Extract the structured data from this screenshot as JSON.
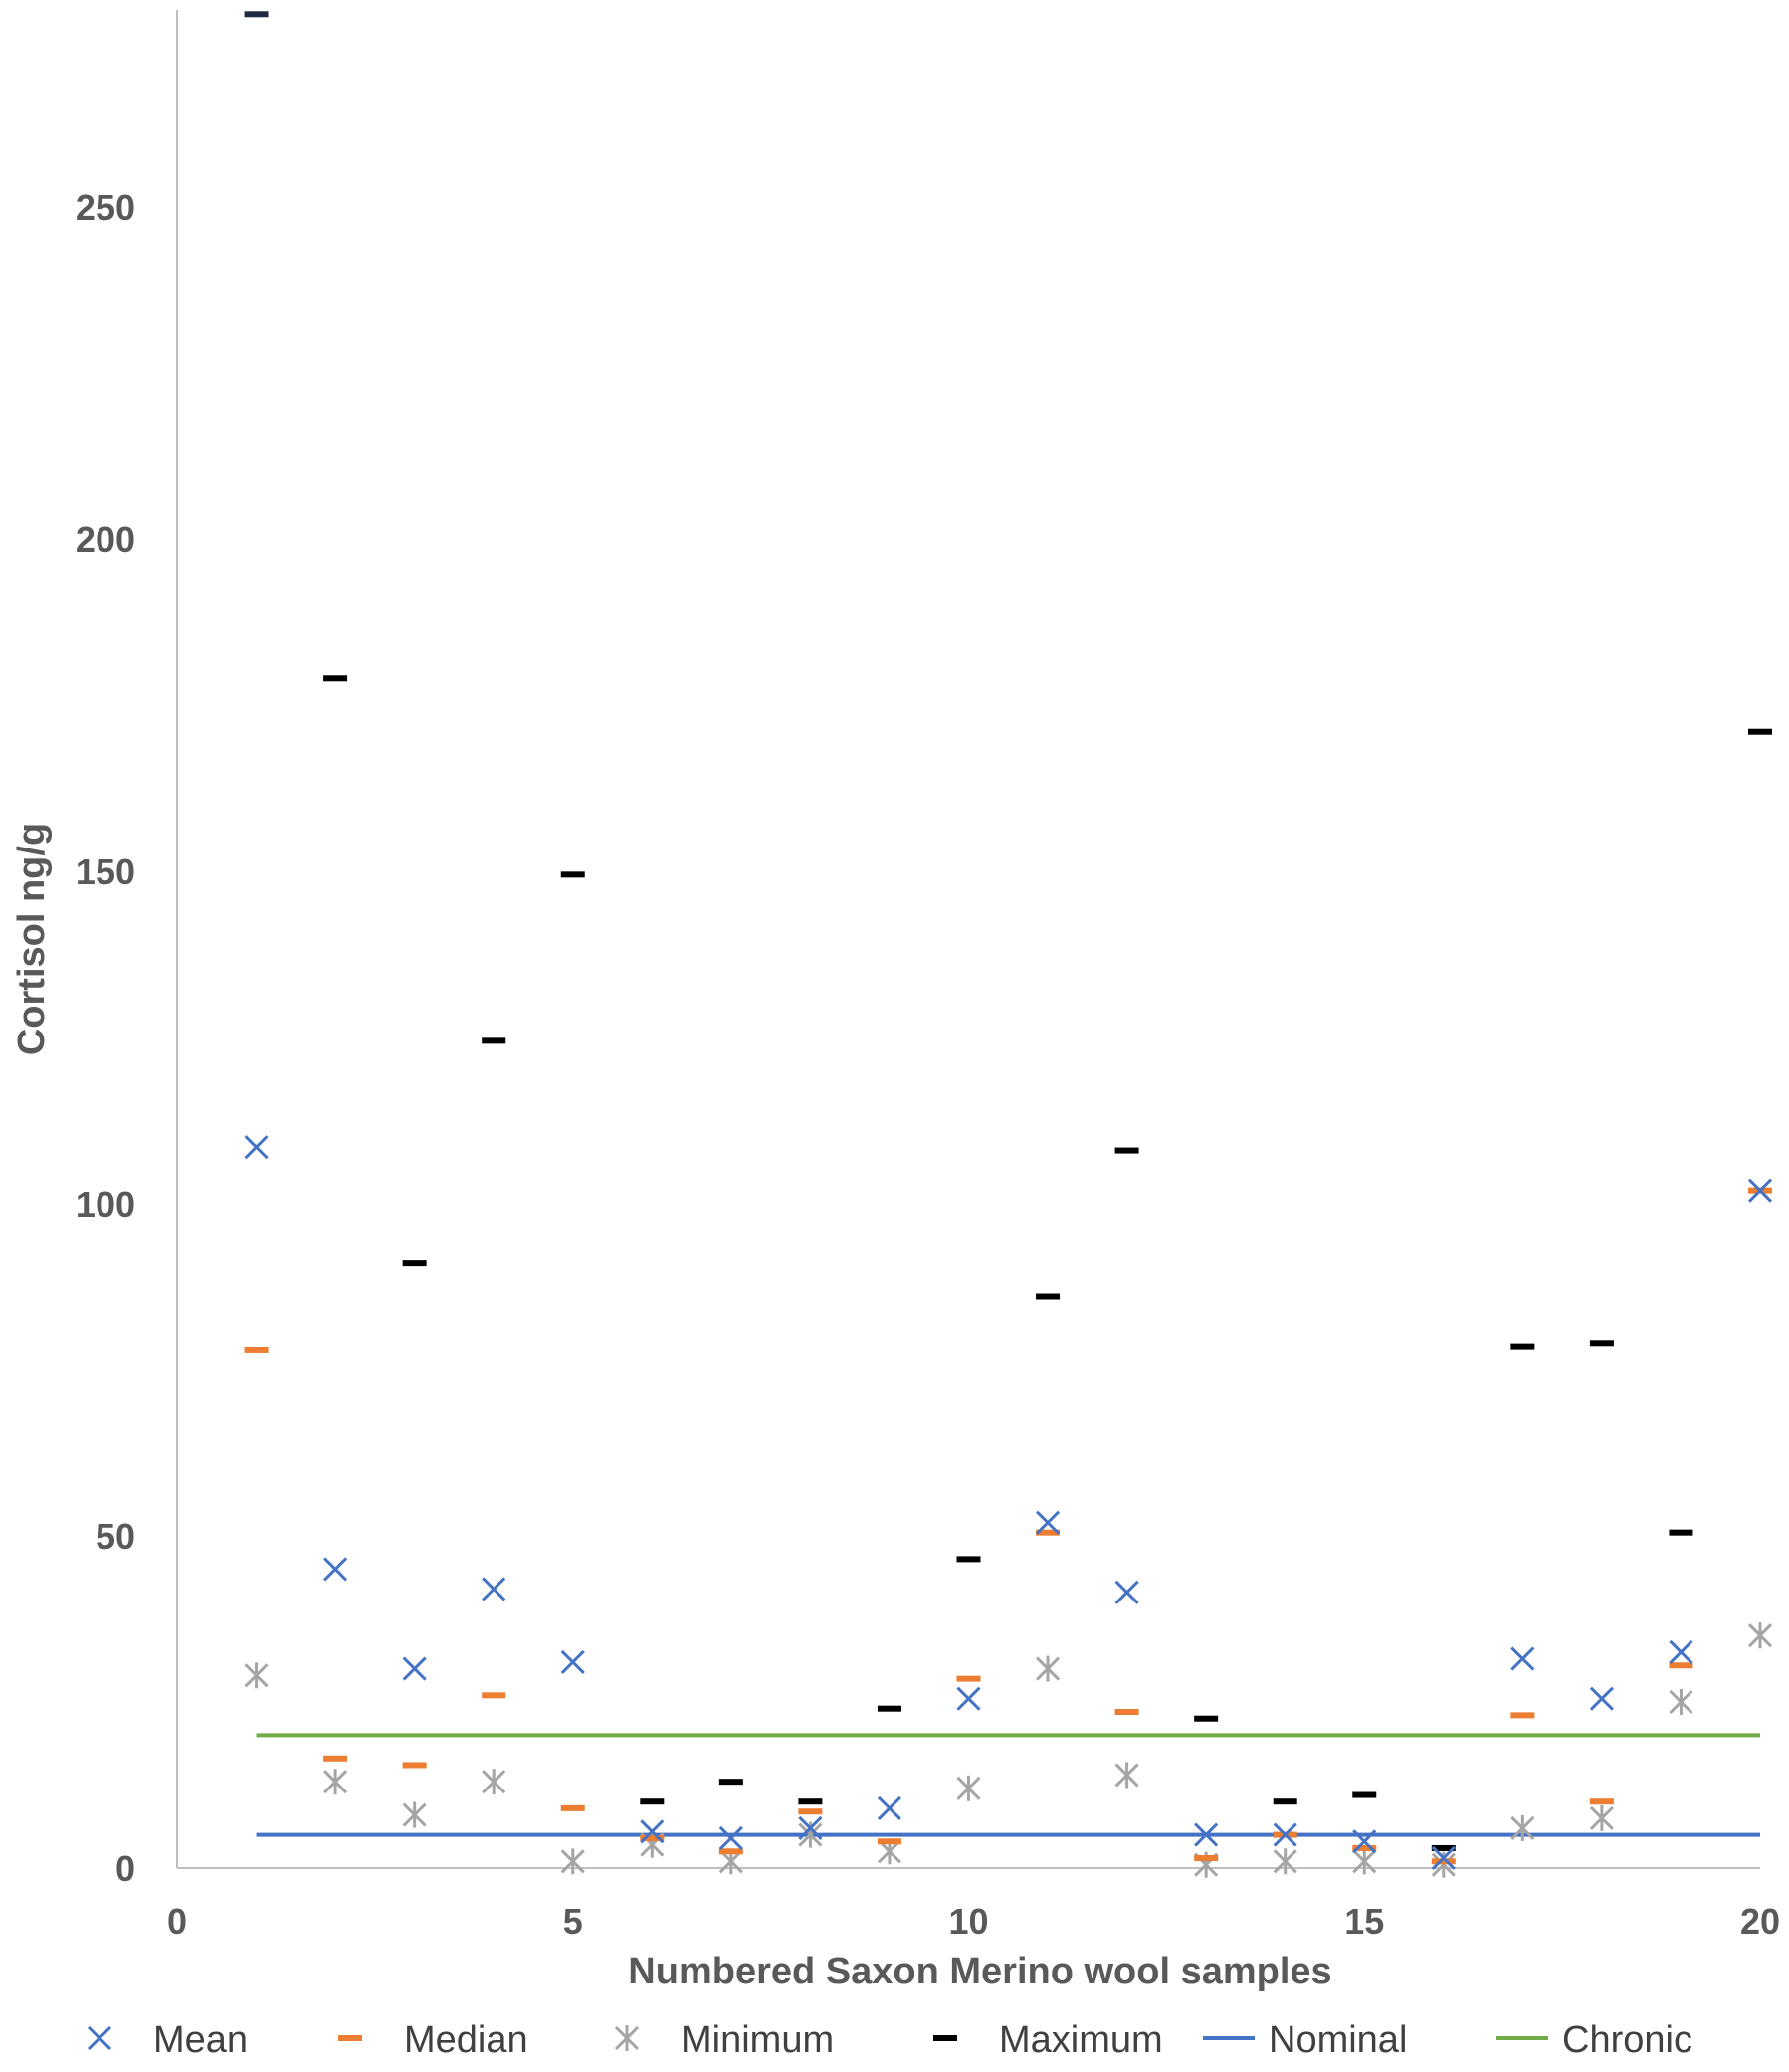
{
  "chart_data": {
    "type": "scatter",
    "title": "",
    "xlabel": "Numbered Saxon Merino wool samples",
    "ylabel": "Cortisol ng/g",
    "xlim": [
      0,
      20
    ],
    "ylim": [
      0,
      280
    ],
    "x_ticks": [
      0,
      5,
      10,
      15,
      20
    ],
    "y_ticks": [
      0,
      50,
      100,
      150,
      200,
      250
    ],
    "grid": false,
    "legend_position": "bottom",
    "x": [
      1,
      2,
      3,
      4,
      5,
      6,
      7,
      8,
      9,
      10,
      11,
      12,
      13,
      14,
      15,
      16,
      17,
      18,
      19,
      20
    ],
    "series": [
      {
        "name": "Mean",
        "marker": "x",
        "color": "#4472c4",
        "values": [
          108.5,
          45,
          30,
          42,
          31,
          5.5,
          4.5,
          6,
          9,
          25.5,
          52,
          41.5,
          5,
          5,
          4,
          1.5,
          31.5,
          25.5,
          32.5,
          102
        ]
      },
      {
        "name": "Median",
        "marker": "dash",
        "color": "#ed7d31",
        "values": [
          78,
          16.5,
          15.5,
          26,
          9,
          4.5,
          2.5,
          8.5,
          4,
          28.5,
          50.5,
          23.5,
          1.5,
          5,
          3,
          1,
          23,
          10,
          30.5,
          102
        ]
      },
      {
        "name": "Minimum",
        "marker": "asterisk",
        "color": "#a5a5a5",
        "values": [
          29,
          13,
          8,
          13,
          1,
          3.5,
          1,
          5,
          2.5,
          12,
          30,
          14,
          0.5,
          1,
          1,
          0.5,
          6,
          7.5,
          25,
          35
        ]
      },
      {
        "name": "Maximum",
        "marker": "dash",
        "color": "#000000",
        "values": [
          279,
          179,
          91,
          124.5,
          149.5,
          10,
          13,
          10,
          24,
          46.5,
          86,
          108,
          22.5,
          10,
          11,
          3,
          78.5,
          79,
          50.5,
          171
        ]
      },
      {
        "name": "Nominal",
        "marker": "line",
        "color": "#4472c4",
        "values": [
          5,
          5,
          5,
          5,
          5,
          5,
          5,
          5,
          5,
          5,
          5,
          5,
          5,
          5,
          5,
          5,
          5,
          5,
          5,
          5
        ]
      },
      {
        "name": "Chronic",
        "marker": "line",
        "color": "#70ad47",
        "values": [
          20,
          20,
          20,
          20,
          20,
          20,
          20,
          20,
          20,
          20,
          20,
          20,
          20,
          20,
          20,
          20,
          20,
          20,
          20,
          20
        ]
      }
    ]
  },
  "colors": {
    "axis": "#bfbfbf",
    "tick_text": "#595959",
    "max_marker_first": "#1f2a44"
  }
}
